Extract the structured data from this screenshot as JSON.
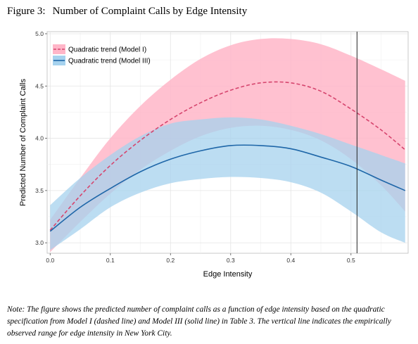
{
  "figure": {
    "number": "Figure 3:",
    "title": "Number of Complaint Calls by Edge Intensity",
    "note": "Note: The figure shows the predicted number of complaint calls as a function of edge intensity based on the quadratic specification from Model I (dashed line) and Model III (solid line) in Table 3. The vertical line indicates the empirically observed range for edge intensity in New York City."
  },
  "chart_data": {
    "type": "line",
    "xlabel": "Edge Intensity",
    "ylabel": "Predicted Number of Complaint Calls",
    "xlim": [
      -0.005,
      0.595
    ],
    "ylim": [
      2.9,
      5.02
    ],
    "x_ticks": [
      "0.0",
      "0.1",
      "0.2",
      "0.3",
      "0.4",
      "0.5"
    ],
    "y_ticks": [
      "3.0",
      "3.5",
      "4.0",
      "4.5",
      "5.0"
    ],
    "x_tick_values": [
      0.0,
      0.1,
      0.2,
      0.3,
      0.4,
      0.5
    ],
    "y_tick_values": [
      3.0,
      3.5,
      4.0,
      4.5,
      5.0
    ],
    "grid": true,
    "legend_position": "top-left",
    "vline_x": 0.51,
    "x": [
      0.0,
      0.05,
      0.1,
      0.15,
      0.2,
      0.25,
      0.3,
      0.35,
      0.4,
      0.45,
      0.5,
      0.55,
      0.59
    ],
    "series": [
      {
        "name": "Quadratic trend (Model I)",
        "style": "dashed",
        "line_color": "#d6456e",
        "band_color": "#ffb6c8",
        "values": [
          3.12,
          3.45,
          3.74,
          3.98,
          4.18,
          4.34,
          4.46,
          4.53,
          4.53,
          4.45,
          4.28,
          4.08,
          3.89
        ],
        "upper": [
          3.22,
          3.62,
          4.0,
          4.31,
          4.56,
          4.76,
          4.89,
          4.95,
          4.95,
          4.9,
          4.79,
          4.66,
          4.55
        ],
        "lower": [
          2.91,
          3.2,
          3.47,
          3.7,
          3.88,
          4.02,
          4.1,
          4.12,
          4.08,
          3.98,
          3.8,
          3.55,
          3.3
        ]
      },
      {
        "name": "Quadratic trend (Model III)",
        "style": "solid",
        "line_color": "#1e66a8",
        "band_color": "#a6d2ee",
        "values": [
          3.11,
          3.34,
          3.52,
          3.68,
          3.8,
          3.88,
          3.93,
          3.93,
          3.9,
          3.82,
          3.73,
          3.6,
          3.5
        ],
        "upper": [
          3.36,
          3.62,
          3.84,
          4.02,
          4.14,
          4.18,
          4.2,
          4.18,
          4.12,
          4.04,
          3.94,
          3.84,
          3.76
        ],
        "lower": [
          2.93,
          3.13,
          3.34,
          3.48,
          3.57,
          3.61,
          3.63,
          3.62,
          3.58,
          3.48,
          3.3,
          3.1,
          3.0
        ]
      }
    ]
  }
}
